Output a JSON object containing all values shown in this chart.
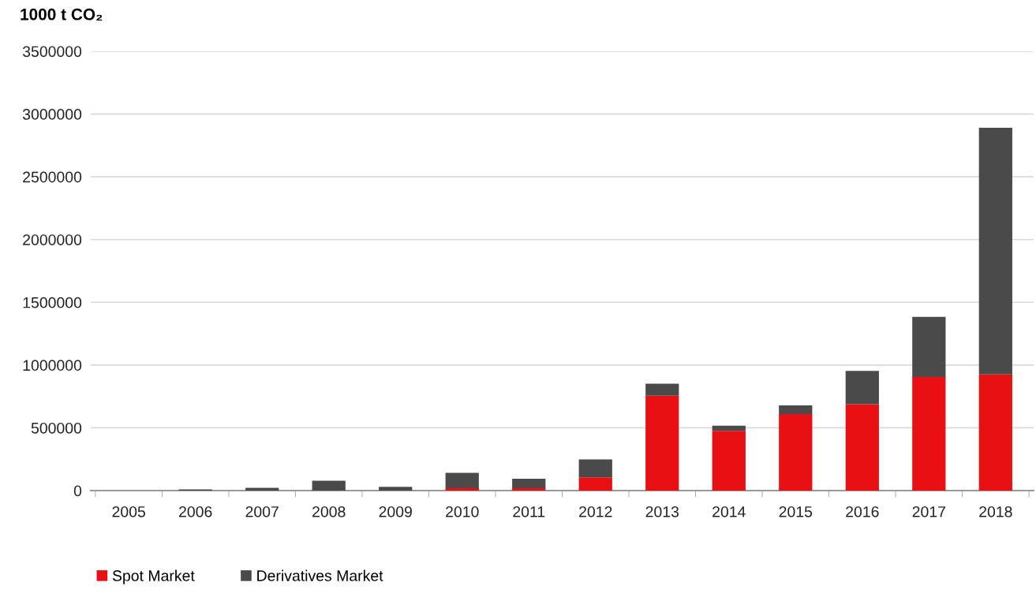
{
  "chart_data": {
    "type": "bar",
    "ylabel": "1000 t CO₂",
    "stacked": true,
    "categories": [
      "2005",
      "2006",
      "2007",
      "2008",
      "2009",
      "2010",
      "2011",
      "2012",
      "2013",
      "2014",
      "2015",
      "2016",
      "2017",
      "2018"
    ],
    "series": [
      {
        "name": "Spot Market",
        "color": "#e81012",
        "values": [
          0,
          0,
          0,
          0,
          0,
          19000,
          19000,
          106000,
          756000,
          476000,
          609000,
          688000,
          905000,
          926000
        ]
      },
      {
        "name": "Derivatives Market",
        "color": "#4a4a4a",
        "values": [
          0,
          10000,
          22000,
          79000,
          30000,
          123000,
          76000,
          142000,
          95000,
          41000,
          70000,
          266000,
          479000,
          1964000
        ]
      }
    ],
    "ylim": [
      0,
      3500000
    ],
    "yticks": [
      0,
      500000,
      1000000,
      1500000,
      2000000,
      2500000,
      3000000,
      3500000
    ],
    "grid": "y",
    "legend": "bottom left"
  }
}
